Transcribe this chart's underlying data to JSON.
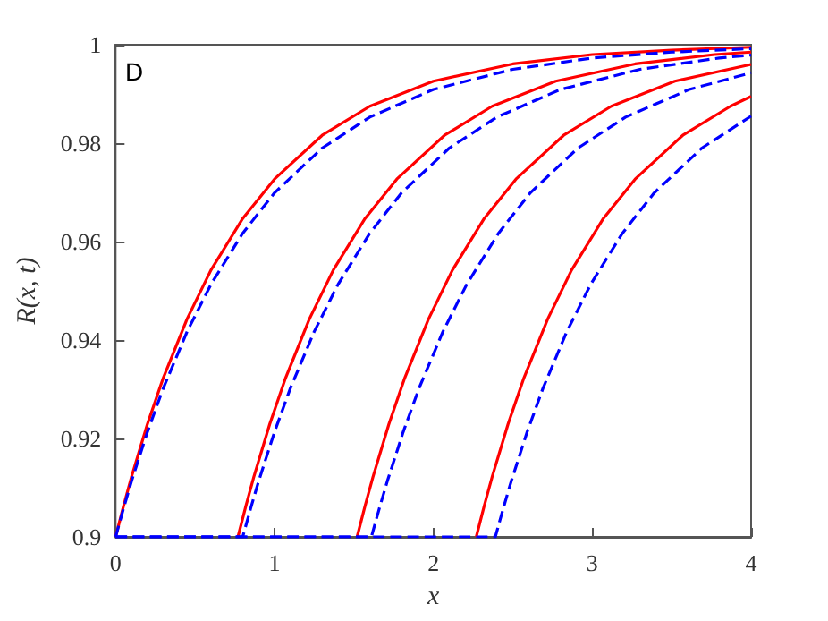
{
  "chart_data": {
    "type": "line",
    "xlabel": "x",
    "ylabel": "R(x, t)",
    "annotations": [
      "D"
    ],
    "xlim": [
      0,
      4
    ],
    "xticks": [
      0,
      1,
      2,
      3,
      4
    ],
    "ylim": [
      0.9,
      1
    ],
    "yticks": [
      0.9,
      0.92,
      0.94,
      0.96,
      0.98,
      1
    ],
    "grid": false,
    "series": [
      {
        "color": "#ff0000",
        "line_style": "solid",
        "x": [
          0,
          0.05,
          0.1,
          0.2,
          0.3,
          0.45,
          0.6,
          0.8,
          1,
          1.3,
          1.6,
          2,
          2.5,
          3,
          3.5,
          4
        ],
        "values": [
          0.9,
          0.9063,
          0.9122,
          0.9229,
          0.9323,
          0.9443,
          0.9542,
          0.9647,
          0.9727,
          0.9816,
          0.9875,
          0.9926,
          0.9961,
          0.998,
          0.9989,
          0.9995
        ]
      },
      {
        "color": "#ff0000",
        "line_style": "solid",
        "x": [
          0.77,
          0.82,
          0.87,
          0.97,
          1.07,
          1.22,
          1.37,
          1.57,
          1.77,
          2.07,
          2.37,
          2.77,
          3.27,
          3.77,
          4
        ],
        "values": [
          0.9,
          0.9063,
          0.9122,
          0.9229,
          0.9323,
          0.9443,
          0.9542,
          0.9647,
          0.9727,
          0.9816,
          0.9875,
          0.9926,
          0.9961,
          0.998,
          0.9985
        ]
      },
      {
        "color": "#ff0000",
        "line_style": "solid",
        "x": [
          1.52,
          1.57,
          1.62,
          1.72,
          1.82,
          1.97,
          2.12,
          2.32,
          2.52,
          2.82,
          3.12,
          3.52,
          4
        ],
        "values": [
          0.9,
          0.9063,
          0.9122,
          0.9229,
          0.9323,
          0.9443,
          0.9542,
          0.9647,
          0.9727,
          0.9816,
          0.9875,
          0.9926,
          0.996
        ]
      },
      {
        "color": "#ff0000",
        "line_style": "solid",
        "x": [
          2.27,
          2.32,
          2.37,
          2.47,
          2.57,
          2.72,
          2.87,
          3.07,
          3.27,
          3.57,
          3.87,
          4
        ],
        "values": [
          0.9,
          0.9063,
          0.9122,
          0.9229,
          0.9323,
          0.9443,
          0.9542,
          0.9647,
          0.9727,
          0.9816,
          0.9875,
          0.9895
        ]
      },
      {
        "color": "#0000ff",
        "line_style": "dashed",
        "x": [
          0,
          0.05,
          0.1,
          0.2,
          0.3,
          0.45,
          0.6,
          0.8,
          1,
          1.3,
          1.6,
          2,
          2.5,
          3,
          3.5,
          4
        ],
        "values": [
          0.9,
          0.9058,
          0.9113,
          0.9213,
          0.9302,
          0.9417,
          0.9513,
          0.9617,
          0.9699,
          0.979,
          0.9853,
          0.9909,
          0.995,
          0.9973,
          0.9985,
          0.9992
        ]
      },
      {
        "color": "#0000ff",
        "line_style": "dashed",
        "x": [
          0,
          0.8,
          0.85,
          0.9,
          1,
          1.1,
          1.25,
          1.4,
          1.6,
          1.8,
          2.1,
          2.4,
          2.8,
          3.3,
          3.8,
          4
        ],
        "values": [
          0.9,
          0.9,
          0.9058,
          0.9113,
          0.9213,
          0.9302,
          0.9417,
          0.9513,
          0.9617,
          0.9699,
          0.979,
          0.9853,
          0.9909,
          0.995,
          0.9973,
          0.9979
        ]
      },
      {
        "color": "#0000ff",
        "line_style": "dashed",
        "x": [
          0,
          1.61,
          1.66,
          1.71,
          1.81,
          1.91,
          2.06,
          2.21,
          2.41,
          2.61,
          2.91,
          3.21,
          3.61,
          4
        ],
        "values": [
          0.9,
          0.9,
          0.9058,
          0.9113,
          0.9213,
          0.9302,
          0.9417,
          0.9513,
          0.9617,
          0.9699,
          0.979,
          0.9853,
          0.9909,
          0.9943
        ]
      },
      {
        "color": "#0000ff",
        "line_style": "dashed",
        "x": [
          0,
          2.39,
          2.44,
          2.49,
          2.59,
          2.69,
          2.84,
          2.99,
          3.19,
          3.39,
          3.69,
          4
        ],
        "values": [
          0.9,
          0.9,
          0.9058,
          0.9113,
          0.9213,
          0.9302,
          0.9417,
          0.9513,
          0.9617,
          0.9699,
          0.979,
          0.9855
        ]
      }
    ]
  }
}
